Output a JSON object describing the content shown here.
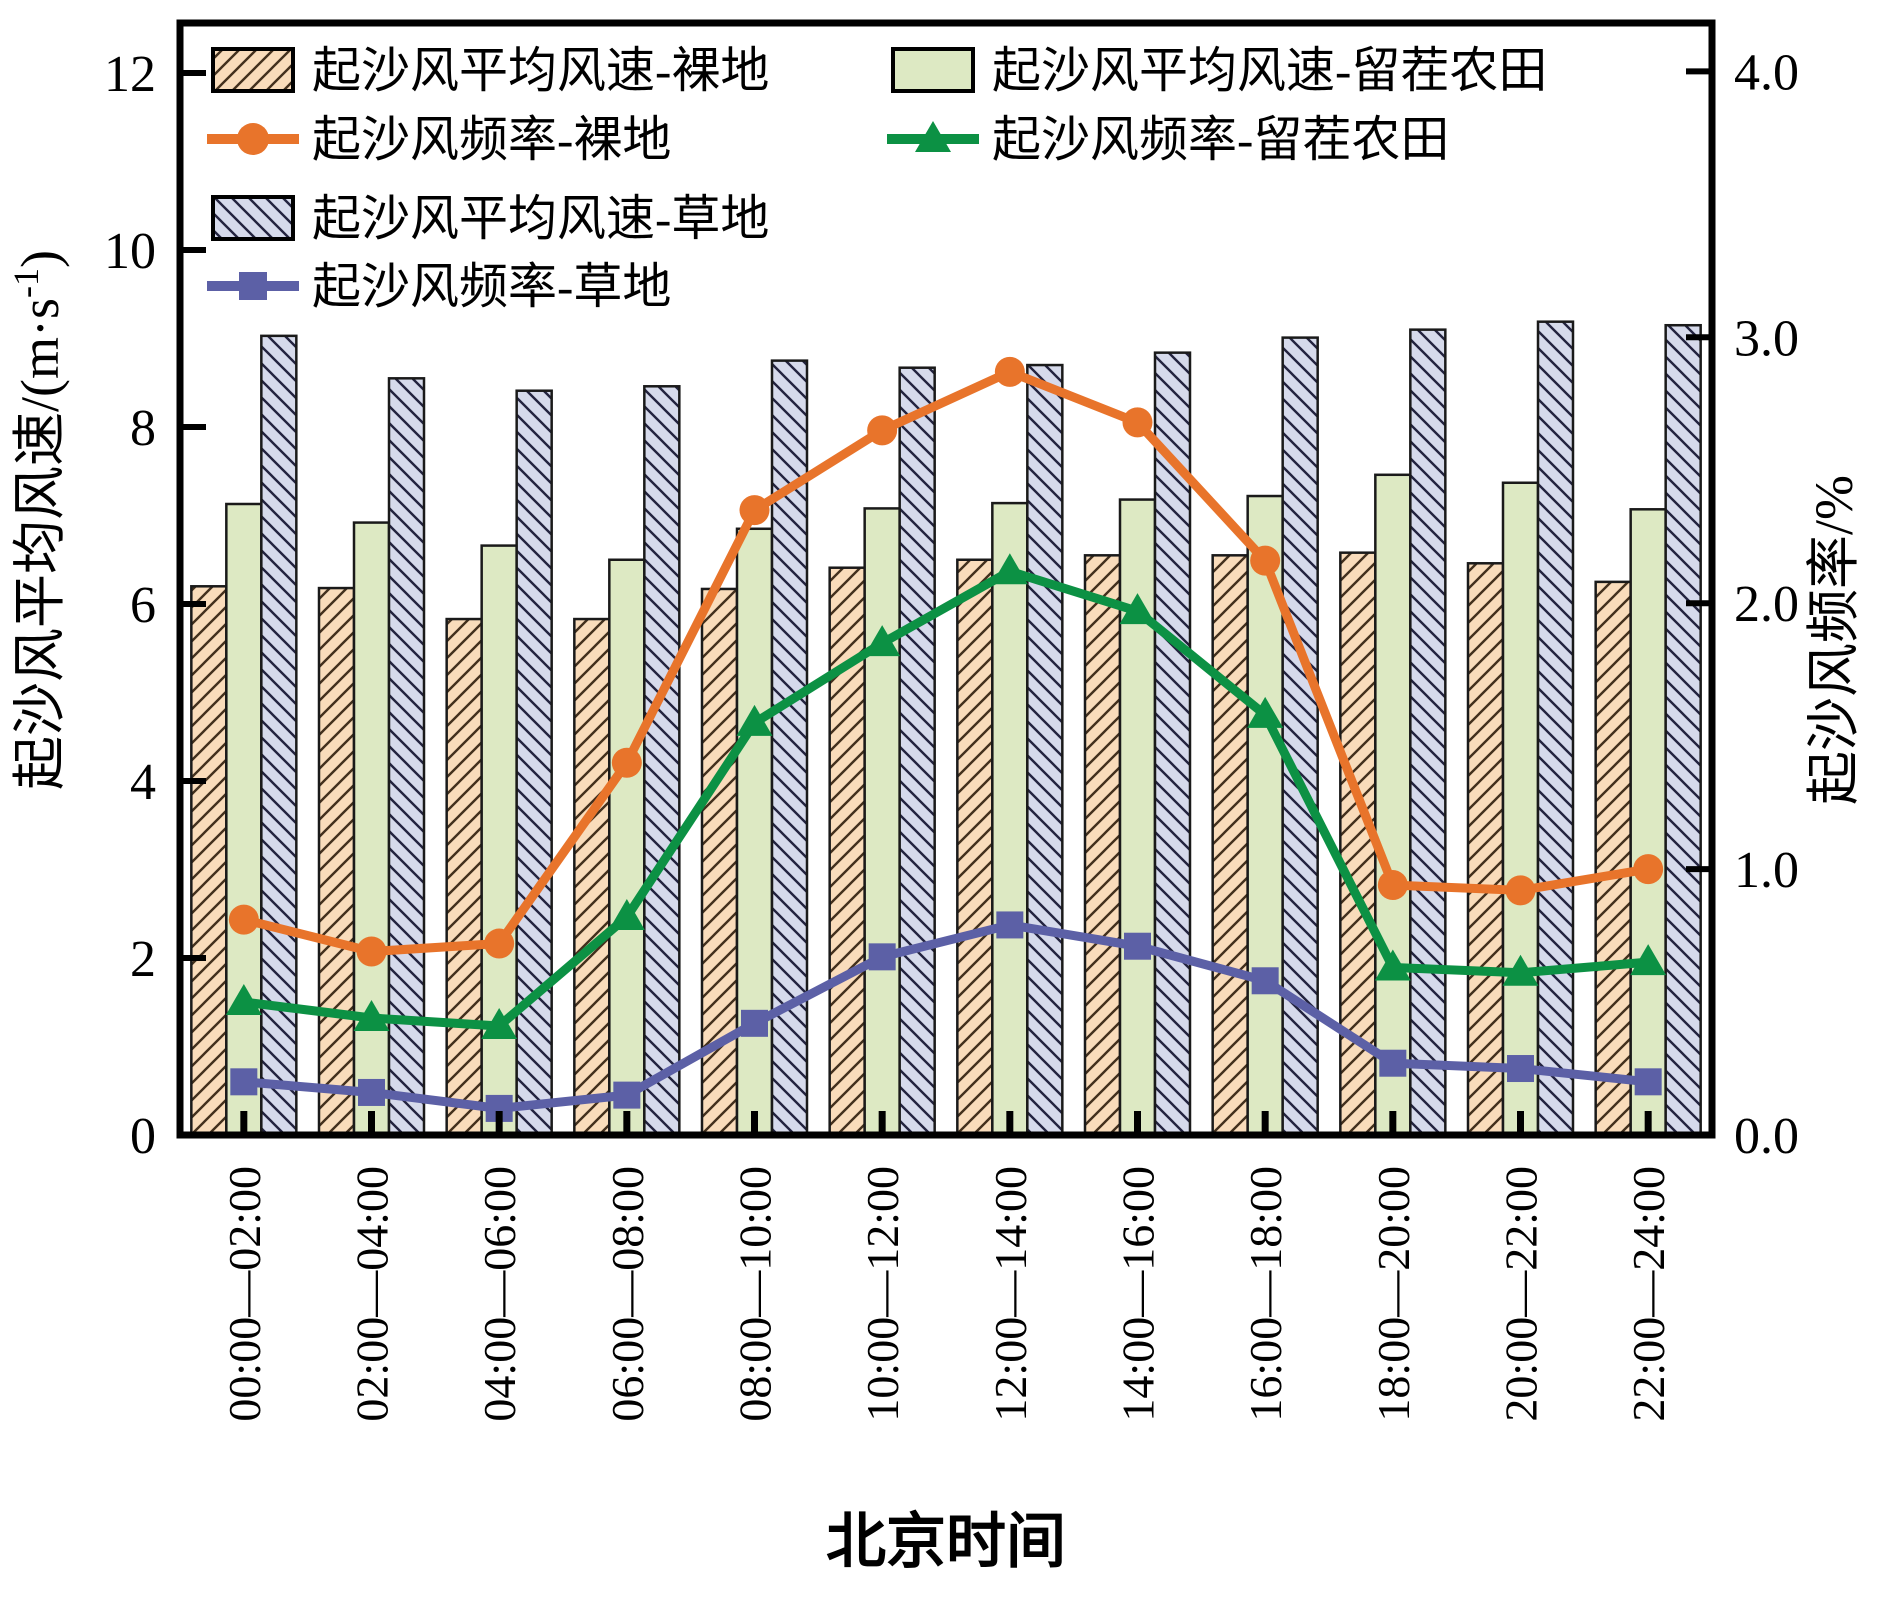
{
  "chart_data": {
    "type": "bar",
    "subtype": "grouped-bars-with-lines-dual-axis",
    "background": "#FFFFFF",
    "frame_color": "#000000",
    "x_axis": {
      "label": "北京时间",
      "categories": [
        "00:00—02:00",
        "02:00—04:00",
        "04:00—06:00",
        "06:00—08:00",
        "08:00—10:00",
        "10:00—12:00",
        "12:00—14:00",
        "14:00—16:00",
        "16:00—18:00",
        "18:00—20:00",
        "20:00—22:00",
        "22:00—24:00"
      ]
    },
    "left_axis": {
      "label": "起沙风平均风速/(m·s⁻¹)",
      "min": 0,
      "max": 12,
      "tick_step": 2,
      "ticks": [
        "0",
        "2",
        "4",
        "6",
        "8",
        "10",
        "12"
      ]
    },
    "right_axis": {
      "label": "起沙风频率/%",
      "min": 0,
      "max": 4,
      "tick_step": 1,
      "ticks": [
        "0.0",
        "1.0",
        "2.0",
        "3.0",
        "4.0"
      ]
    },
    "bar_series": [
      {
        "name": "起沙风平均风速-裸地",
        "land": "bare-land",
        "style": "hatch-forward",
        "fill": "#F9DCBB",
        "hatch_color": "#43301D",
        "values": [
          6.2,
          6.18,
          5.83,
          5.83,
          6.17,
          6.41,
          6.5,
          6.55,
          6.55,
          6.58,
          6.46,
          6.25
        ]
      },
      {
        "name": "起沙风平均风速-留茬农田",
        "land": "stubble-farmland",
        "style": "solid",
        "fill": "#DDE9C3",
        "hatch_color": null,
        "values": [
          7.13,
          6.92,
          6.66,
          6.5,
          6.85,
          7.08,
          7.14,
          7.18,
          7.22,
          7.46,
          7.37,
          7.07
        ]
      },
      {
        "name": "起沙风平均风速-草地",
        "land": "grassland",
        "style": "hatch-back",
        "fill": "#D6DAEB",
        "hatch_color": "#23233F",
        "values": [
          9.03,
          8.55,
          8.41,
          8.46,
          8.75,
          8.67,
          8.7,
          8.84,
          9.01,
          9.1,
          9.19,
          9.15
        ]
      }
    ],
    "line_series": [
      {
        "name": "起沙风频率-裸地",
        "land": "bare-land",
        "color": "#E8742B",
        "marker": "circle",
        "values": [
          0.81,
          0.69,
          0.72,
          1.4,
          2.35,
          2.65,
          2.87,
          2.68,
          2.16,
          0.94,
          0.92,
          1.0
        ]
      },
      {
        "name": "起沙风频率-留茬农田",
        "land": "stubble-farmland",
        "color": "#0C9144",
        "marker": "triangle",
        "values": [
          0.5,
          0.44,
          0.41,
          0.82,
          1.55,
          1.85,
          2.12,
          1.97,
          1.58,
          0.63,
          0.61,
          0.65
        ]
      },
      {
        "name": "起沙风频率-草地",
        "land": "grassland",
        "color": "#5C60A6",
        "marker": "square",
        "values": [
          0.2,
          0.16,
          0.1,
          0.15,
          0.42,
          0.67,
          0.79,
          0.71,
          0.58,
          0.27,
          0.25,
          0.2
        ]
      }
    ],
    "legend": {
      "columns": [
        {
          "entries": [
            {
              "swatch": "bar-0",
              "label": "起沙风平均风速-裸地"
            },
            {
              "swatch": "line-0",
              "label": "起沙风频率-裸地"
            },
            {
              "swatch": "bar-2",
              "label": "起沙风平均风速-草地"
            },
            {
              "swatch": "line-2",
              "label": "起沙风频率-草地"
            }
          ]
        },
        {
          "entries": [
            {
              "swatch": "bar-1",
              "label": "起沙风平均风速-留茬农田"
            },
            {
              "swatch": "line-1",
              "label": "起沙风频率-留茬农田"
            }
          ]
        }
      ]
    }
  }
}
